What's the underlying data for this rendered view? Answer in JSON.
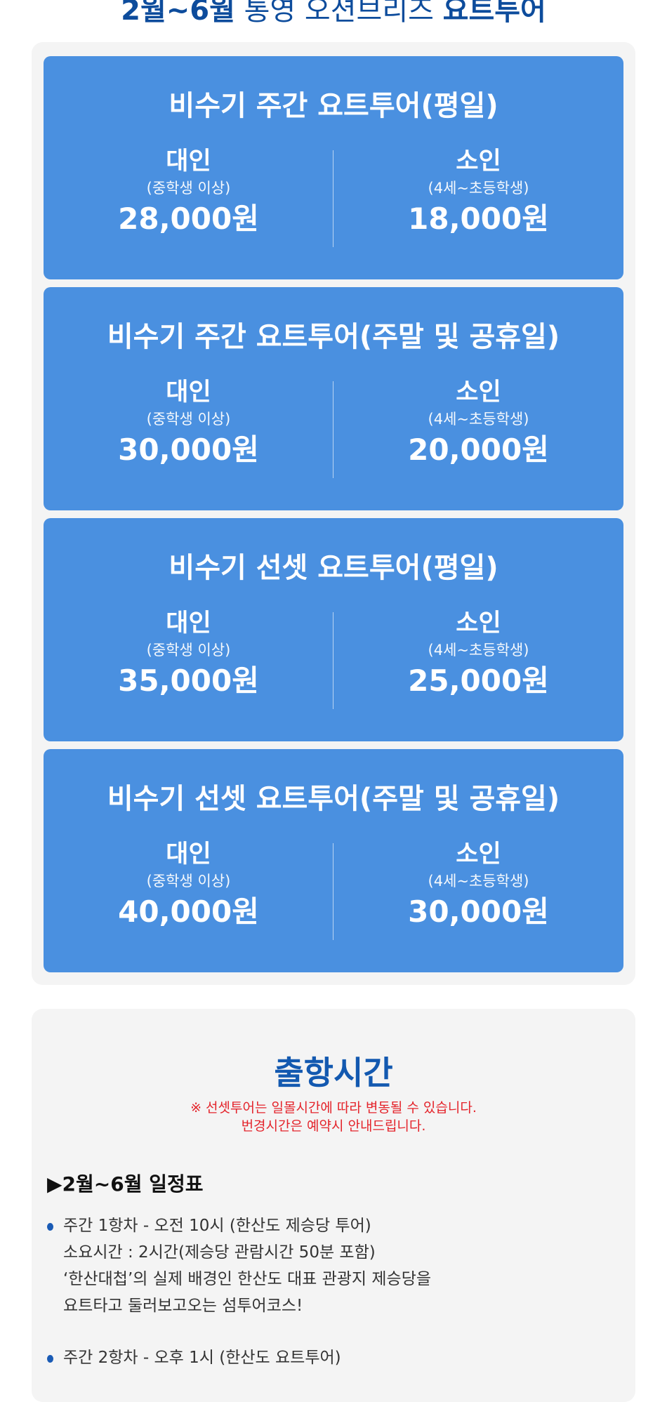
{
  "header": {
    "title_bold1": "2월~6월",
    "title_light": " 통영 오션브리즈 ",
    "title_bold2": "요트투어"
  },
  "prices": [
    {
      "title": "비수기 주간 요트투어(평일)",
      "adult": {
        "label": "대인",
        "sub": "(중학생 이상)",
        "price": "28,000원"
      },
      "child": {
        "label": "소인",
        "sub": "(4세~초등학생)",
        "price": "18,000원"
      }
    },
    {
      "title": "비수기 주간 요트투어(주말 및 공휴일)",
      "adult": {
        "label": "대인",
        "sub": "(중학생 이상)",
        "price": "30,000원"
      },
      "child": {
        "label": "소인",
        "sub": "(4세~초등학생)",
        "price": "20,000원"
      }
    },
    {
      "title": "비수기 선셋 요트투어(평일)",
      "adult": {
        "label": "대인",
        "sub": "(중학생 이상)",
        "price": "35,000원"
      },
      "child": {
        "label": "소인",
        "sub": "(4세~초등학생)",
        "price": "25,000원"
      }
    },
    {
      "title": "비수기 선셋 요트투어(주말 및 공휴일)",
      "adult": {
        "label": "대인",
        "sub": "(중학생 이상)",
        "price": "40,000원"
      },
      "child": {
        "label": "소인",
        "sub": "(4세~초등학생)",
        "price": "30,000원"
      }
    }
  ],
  "departure": {
    "title": "출항시간",
    "note1": "※ 선셋투어는 일몰시간에 따라 변동될 수 있습니다.",
    "note2": "번경시간은 예약시 안내드립니다.",
    "schedule_heading": "▶2월~6월 일정표",
    "items": [
      {
        "lines": [
          "주간 1항차 - 오전 10시 (한산도 제승당 투어)",
          "소요시간 : 2시간(제승당 관람시간 50분 포함)",
          "‘한산대첩’의 실제 배경인 한산도 대표 관광지 제승당을",
          "요트타고 둘러보고오는 섬투어코스!"
        ]
      },
      {
        "lines": [
          "주간 2항차 - 오후 1시 (한산도 요트투어)"
        ]
      }
    ]
  },
  "colors": {
    "card": "#4a90e0",
    "title": "#0d4c9c",
    "note": "#e4242b",
    "panel": "#f4f4f4"
  }
}
